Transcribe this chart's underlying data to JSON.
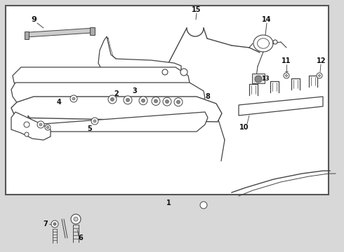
{
  "title": "",
  "bg_color": "#d8d8d8",
  "box_bg": "#f0f0f0",
  "border_color": "#444444",
  "line_color": "#444444",
  "text_color": "#111111",
  "figsize": [
    4.9,
    3.6
  ],
  "dpi": 100
}
